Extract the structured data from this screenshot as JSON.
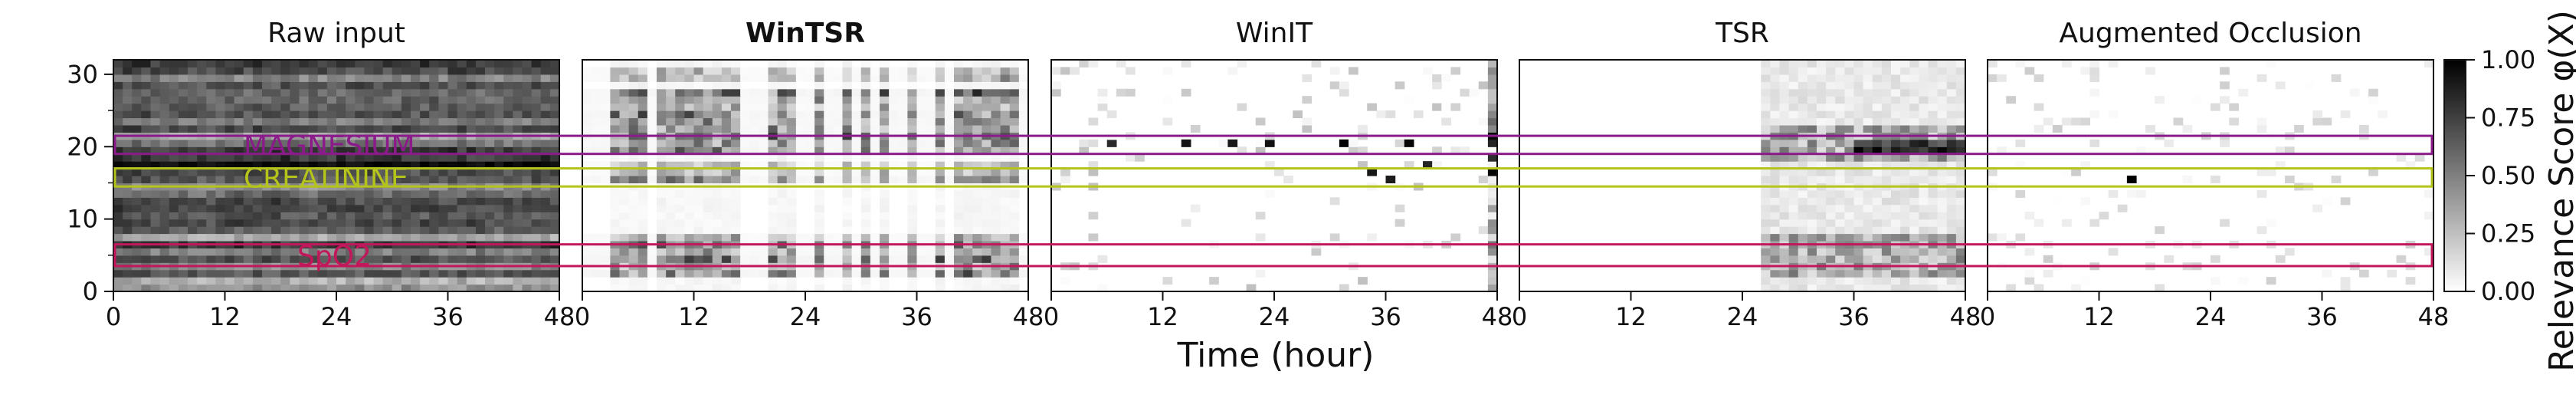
{
  "figure": {
    "xlabel": "Time (hour)",
    "colorbar_label": "Relevance Score φ(X)",
    "colorbar_ticks": [
      "0.00",
      "0.25",
      "0.50",
      "0.75",
      "1.00"
    ]
  },
  "chart_data": [
    {
      "type": "heatmap",
      "title": "Raw input",
      "title_bold": false,
      "xlim": [
        0,
        48
      ],
      "ylim": [
        0,
        32
      ],
      "xticks": [
        "0",
        "12",
        "24",
        "36",
        "48"
      ],
      "yticks": [
        "0",
        "10",
        "20",
        "30"
      ],
      "annotations": [
        {
          "label": "MAGNESIUM",
          "color": "#8b1a8b",
          "y_low": 19,
          "y_high": 21.5
        },
        {
          "label": "CREATININE",
          "color": "#b5c41a",
          "y_low": 14.5,
          "y_high": 17
        },
        {
          "label": "SpO2",
          "color": "#c2185b",
          "y_low": 3.5,
          "y_high": 6.5
        }
      ]
    },
    {
      "type": "heatmap",
      "title": "WinTSR",
      "title_bold": true,
      "xlim": [
        0,
        48
      ],
      "ylim": [
        0,
        32
      ],
      "xticks": [
        "0",
        "12",
        "24",
        "36",
        "48"
      ]
    },
    {
      "type": "heatmap",
      "title": "WinIT",
      "title_bold": false,
      "xlim": [
        0,
        48
      ],
      "ylim": [
        0,
        32
      ],
      "xticks": [
        "0",
        "12",
        "24",
        "36",
        "48"
      ]
    },
    {
      "type": "heatmap",
      "title": "TSR",
      "title_bold": false,
      "xlim": [
        0,
        48
      ],
      "ylim": [
        0,
        32
      ],
      "xticks": [
        "0",
        "12",
        "24",
        "36",
        "48"
      ]
    },
    {
      "type": "heatmap",
      "title": "Augmented Occlusion",
      "title_bold": false,
      "xlim": [
        0,
        48
      ],
      "ylim": [
        0,
        32
      ],
      "xticks": [
        "0",
        "12",
        "24",
        "36",
        "48"
      ]
    }
  ],
  "colors": {
    "magnesium": "#8b1a8b",
    "creatinine": "#b5c41a",
    "spo2": "#c2185b"
  }
}
